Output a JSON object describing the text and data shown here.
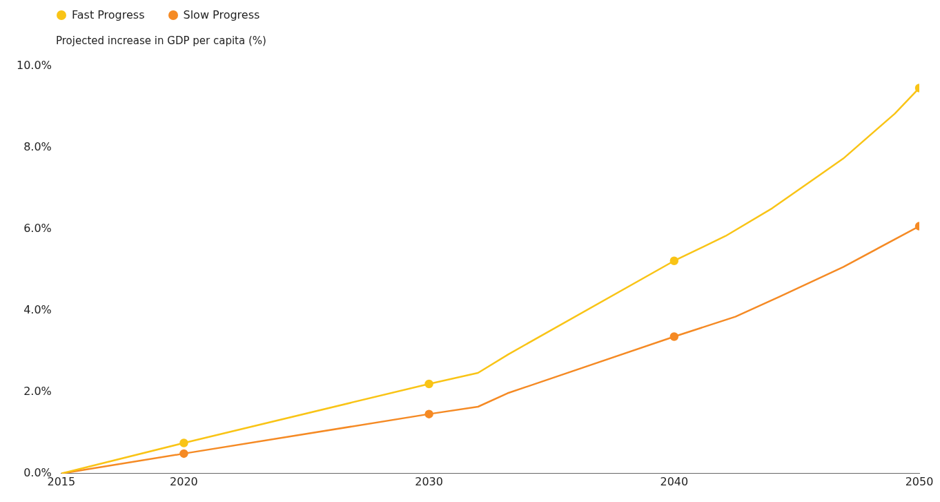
{
  "chart_data": {
    "type": "line",
    "ylabel": "Projected increase in GDP per capita (%)",
    "series": [
      {
        "name": "Fast Progress",
        "color": "#f9c416",
        "marker": "none",
        "x": [
          2015,
          2020,
          2030,
          2032,
          2033.25,
          2040,
          2042.1,
          2044,
          2046.9,
          2049,
          2050
        ],
        "values": [
          0,
          0.75,
          2.2,
          2.47,
          2.93,
          5.22,
          5.83,
          6.51,
          7.73,
          8.83,
          9.46
        ]
      },
      {
        "name": "Slow Progress",
        "color": "#f58a24",
        "marker": "none",
        "x": [
          2015,
          2020,
          2030,
          2032,
          2033.2,
          2040,
          2042.5,
          2044.3,
          2046.9,
          2050
        ],
        "values": [
          0,
          0.49,
          1.46,
          1.64,
          1.97,
          3.36,
          3.85,
          4.34,
          5.07,
          6.07
        ]
      },
      {
        "type": "scatter",
        "color": "#f9c416",
        "x": [
          2020,
          2030,
          2040,
          2050
        ],
        "values": [
          0.75,
          2.2,
          5.22,
          9.46
        ]
      },
      {
        "type": "scatter",
        "color": "#f58a24",
        "x": [
          2020,
          2030,
          2040,
          2050
        ],
        "values": [
          0.49,
          1.46,
          3.36,
          6.07
        ]
      }
    ],
    "xlim": [
      2015,
      2050
    ],
    "xticks": [
      2015,
      2020,
      2030,
      2040,
      2050
    ],
    "ylim": [
      0,
      10
    ],
    "yticks": [
      {
        "value": 0,
        "label": "0.0%"
      },
      {
        "value": 2,
        "label": "2.0%"
      },
      {
        "value": 4,
        "label": "4.0%"
      },
      {
        "value": 6,
        "label": "6.0%"
      },
      {
        "value": 8,
        "label": "8.0%"
      },
      {
        "value": 10,
        "label": "10.0%"
      }
    ],
    "grid": false,
    "legend": "top left",
    "marker": "circle",
    "line_style": "solid"
  }
}
